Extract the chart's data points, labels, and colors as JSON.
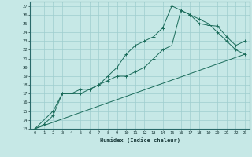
{
  "xlabel": "Humidex (Indice chaleur)",
  "ylabel": "",
  "xlim": [
    -0.5,
    23.5
  ],
  "ylim": [
    13,
    27.5
  ],
  "xticks": [
    0,
    1,
    2,
    3,
    4,
    5,
    6,
    7,
    8,
    9,
    10,
    11,
    12,
    13,
    14,
    15,
    16,
    17,
    18,
    19,
    20,
    21,
    22,
    23
  ],
  "yticks": [
    13,
    14,
    15,
    16,
    17,
    18,
    19,
    20,
    21,
    22,
    23,
    24,
    25,
    26,
    27
  ],
  "bg_color": "#c6e8e6",
  "grid_color": "#9ecece",
  "line_color": "#1a6b5a",
  "line1_x": [
    0,
    1,
    2,
    3,
    4,
    5,
    6,
    7,
    8,
    9,
    10,
    11,
    12,
    13,
    14,
    15,
    16,
    17,
    18,
    19,
    20,
    21,
    22,
    23
  ],
  "line1_y": [
    13,
    13.5,
    14.5,
    17,
    17,
    17.5,
    17.5,
    18,
    19,
    20,
    21.5,
    22.5,
    23,
    23.5,
    24.5,
    27,
    26.5,
    26,
    25,
    24.8,
    24.7,
    23.5,
    22.5,
    23
  ],
  "line2_x": [
    0,
    2,
    3,
    4,
    5,
    6,
    7,
    8,
    9,
    10,
    11,
    12,
    13,
    14,
    15,
    16,
    17,
    18,
    19,
    20,
    21,
    22,
    23
  ],
  "line2_y": [
    13,
    15,
    17,
    17,
    17,
    17.5,
    18,
    18.5,
    19,
    19,
    19.5,
    20,
    21,
    22,
    22.5,
    26.5,
    26,
    25.5,
    25,
    24,
    23,
    22,
    21.5
  ],
  "line3_x": [
    0,
    23
  ],
  "line3_y": [
    13,
    21.5
  ]
}
